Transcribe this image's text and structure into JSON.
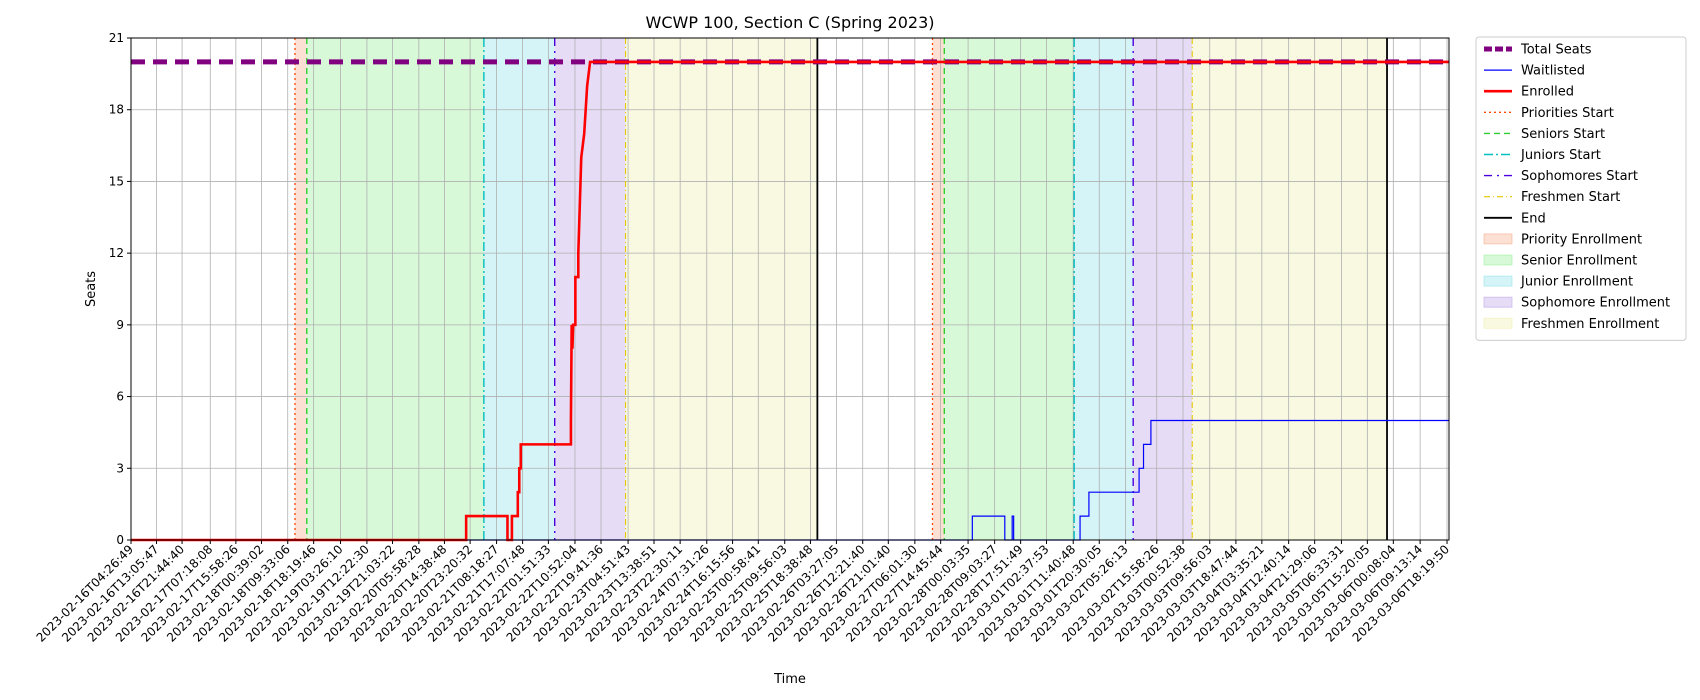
{
  "chart_data": {
    "type": "line",
    "title": "WCWP 100, Section C (Spring 2023)",
    "xlabel": "Time",
    "ylabel": "Seats",
    "ylim": [
      0,
      21
    ],
    "yticks": [
      0,
      3,
      6,
      9,
      12,
      15,
      18,
      21
    ],
    "xlim": [
      "2023-02-16T04:26:49",
      "2023-03-06T19:00:00"
    ],
    "xticks": [
      "2023-02-16T04:26:49",
      "2023-02-16T13:05:47",
      "2023-02-16T21:44:40",
      "2023-02-17T07:18:08",
      "2023-02-17T15:58:26",
      "2023-02-18T00:39:02",
      "2023-02-18T09:33:06",
      "2023-02-18T18:19:46",
      "2023-02-19T03:26:10",
      "2023-02-19T12:22:30",
      "2023-02-19T21:03:22",
      "2023-02-20T05:58:28",
      "2023-02-20T14:38:48",
      "2023-02-20T23:20:32",
      "2023-02-21T08:18:27",
      "2023-02-21T17:07:48",
      "2023-02-22T01:51:33",
      "2023-02-22T10:52:04",
      "2023-02-22T19:41:36",
      "2023-02-23T04:51:43",
      "2023-02-23T13:38:51",
      "2023-02-23T22:30:11",
      "2023-02-24T07:31:26",
      "2023-02-24T16:15:56",
      "2023-02-25T00:58:41",
      "2023-02-25T09:56:03",
      "2023-02-25T18:38:48",
      "2023-02-26T03:27:05",
      "2023-02-26T12:21:40",
      "2023-02-26T21:01:40",
      "2023-02-27T06:01:30",
      "2023-02-27T14:45:44",
      "2023-02-28T00:03:35",
      "2023-02-28T09:03:27",
      "2023-02-28T17:51:49",
      "2023-03-01T02:37:53",
      "2023-03-01T11:40:48",
      "2023-03-01T20:30:05",
      "2023-03-02T05:26:13",
      "2023-03-02T15:58:26",
      "2023-03-03T00:52:38",
      "2023-03-03T09:56:03",
      "2023-03-03T18:47:44",
      "2023-03-04T03:35:21",
      "2023-03-04T12:40:14",
      "2023-03-04T21:29:06",
      "2023-03-05T06:33:31",
      "2023-03-05T15:20:05",
      "2023-03-06T00:08:04",
      "2023-03-06T09:13:14",
      "2023-03-06T18:19:50"
    ],
    "grid": true,
    "legend_position": "outside-right",
    "series": [
      {
        "name": "Total Seats",
        "style": "dashed-thick",
        "color": "#800080",
        "points": [
          [
            "2023-02-16T04:26:49",
            20
          ],
          [
            "2023-03-06T19:00:00",
            20
          ]
        ]
      },
      {
        "name": "Waitlisted",
        "style": "solid-thin",
        "color": "#0000ff",
        "points": [
          [
            "2023-02-16T04:26:49",
            0
          ],
          [
            "2023-02-28T01:30:00",
            0
          ],
          [
            "2023-02-28T01:30:00",
            1
          ],
          [
            "2023-02-28T12:30:00",
            1
          ],
          [
            "2023-02-28T12:30:00",
            0
          ],
          [
            "2023-02-28T15:00:00",
            0
          ],
          [
            "2023-02-28T15:00:00",
            1
          ],
          [
            "2023-02-28T15:30:00",
            1
          ],
          [
            "2023-02-28T15:30:00",
            0
          ],
          [
            "2023-03-01T14:00:00",
            0
          ],
          [
            "2023-03-01T14:00:00",
            1
          ],
          [
            "2023-03-01T17:00:00",
            1
          ],
          [
            "2023-03-01T17:00:00",
            2
          ],
          [
            "2023-03-02T10:00:00",
            2
          ],
          [
            "2023-03-02T10:00:00",
            3
          ],
          [
            "2023-03-02T11:30:00",
            3
          ],
          [
            "2023-03-02T11:30:00",
            4
          ],
          [
            "2023-03-02T14:00:00",
            4
          ],
          [
            "2023-03-02T14:00:00",
            5
          ],
          [
            "2023-03-06T19:00:00",
            5
          ]
        ]
      },
      {
        "name": "Enrolled",
        "style": "solid-thick",
        "color": "#ff0000",
        "points": [
          [
            "2023-02-16T04:26:49",
            0
          ],
          [
            "2023-02-20T22:00:00",
            0
          ],
          [
            "2023-02-20T22:00:00",
            1
          ],
          [
            "2023-02-21T12:00:00",
            1
          ],
          [
            "2023-02-21T12:00:00",
            0
          ],
          [
            "2023-02-21T13:30:00",
            0
          ],
          [
            "2023-02-21T13:30:00",
            1
          ],
          [
            "2023-02-21T15:30:00",
            1
          ],
          [
            "2023-02-21T15:30:00",
            2
          ],
          [
            "2023-02-21T16:00:00",
            2
          ],
          [
            "2023-02-21T16:00:00",
            3
          ],
          [
            "2023-02-21T16:30:00",
            3
          ],
          [
            "2023-02-21T16:30:00",
            4
          ],
          [
            "2023-02-22T09:30:00",
            4
          ],
          [
            "2023-02-22T09:30:00",
            5
          ],
          [
            "2023-02-22T09:45:00",
            9
          ],
          [
            "2023-02-22T10:00:00",
            8
          ],
          [
            "2023-02-22T10:15:00",
            9
          ],
          [
            "2023-02-22T11:00:00",
            9
          ],
          [
            "2023-02-22T11:00:00",
            11
          ],
          [
            "2023-02-22T12:00:00",
            11
          ],
          [
            "2023-02-22T12:00:00",
            12
          ],
          [
            "2023-02-22T13:00:00",
            16
          ],
          [
            "2023-02-22T14:00:00",
            17
          ],
          [
            "2023-02-22T15:00:00",
            19
          ],
          [
            "2023-02-22T16:00:00",
            20
          ],
          [
            "2023-03-06T19:00:00",
            20
          ]
        ]
      }
    ],
    "vertical_lines": [
      {
        "name": "Priorities Start",
        "style": "dotted",
        "color": "#ff4500",
        "x": [
          "2023-02-18T12:00:00",
          "2023-02-27T12:00:00"
        ]
      },
      {
        "name": "Seniors Start",
        "style": "dashed",
        "color": "#32cd32",
        "x": [
          "2023-02-18T16:00:00",
          "2023-02-27T16:00:00"
        ]
      },
      {
        "name": "Juniors Start",
        "style": "dashdot",
        "color": "#00bfbf",
        "x": [
          "2023-02-21T04:00:00",
          "2023-03-01T12:00:00"
        ]
      },
      {
        "name": "Sophomores Start",
        "style": "loosely-dashdot",
        "color": "#4b00e0",
        "x": [
          "2023-02-22T04:00:00",
          "2023-03-02T08:00:00"
        ]
      },
      {
        "name": "Freshmen Start",
        "style": "dashdot-thin",
        "color": "#e6c800",
        "x": [
          "2023-02-23T04:00:00",
          "2023-03-03T04:00:00"
        ]
      },
      {
        "name": "End",
        "style": "solid",
        "color": "#000000",
        "x": [
          "2023-02-25T21:00:00",
          "2023-03-05T22:00:00"
        ]
      }
    ],
    "shaded_regions": [
      {
        "name": "Priority Enrollment",
        "color": "#f4a582",
        "spans": [
          [
            "2023-02-18T12:00:00",
            "2023-02-18T16:00:00"
          ],
          [
            "2023-02-27T12:00:00",
            "2023-02-27T16:00:00"
          ]
        ]
      },
      {
        "name": "Senior Enrollment",
        "color": "#90ee90",
        "spans": [
          [
            "2023-02-18T16:00:00",
            "2023-02-21T04:00:00"
          ],
          [
            "2023-02-27T16:00:00",
            "2023-03-01T12:00:00"
          ]
        ]
      },
      {
        "name": "Junior Enrollment",
        "color": "#87e0e8",
        "spans": [
          [
            "2023-02-21T04:00:00",
            "2023-02-22T04:00:00"
          ],
          [
            "2023-03-01T12:00:00",
            "2023-03-02T08:00:00"
          ]
        ]
      },
      {
        "name": "Sophomore Enrollment",
        "color": "#b69ae6",
        "spans": [
          [
            "2023-02-22T04:00:00",
            "2023-02-23T04:00:00"
          ],
          [
            "2023-03-02T08:00:00",
            "2023-03-03T04:00:00"
          ]
        ]
      },
      {
        "name": "Freshmen Enrollment",
        "color": "#eeeea8",
        "spans": [
          [
            "2023-02-23T04:00:00",
            "2023-02-25T21:00:00"
          ],
          [
            "2023-03-03T04:00:00",
            "2023-03-05T22:00:00"
          ]
        ]
      }
    ],
    "legend": [
      {
        "label": "Total Seats",
        "kind": "line",
        "ref": "series.0"
      },
      {
        "label": "Waitlisted",
        "kind": "line",
        "ref": "series.1"
      },
      {
        "label": "Enrolled",
        "kind": "line",
        "ref": "series.2"
      },
      {
        "label": "Priorities Start",
        "kind": "line",
        "ref": "vertical_lines.0"
      },
      {
        "label": "Seniors Start",
        "kind": "line",
        "ref": "vertical_lines.1"
      },
      {
        "label": "Juniors Start",
        "kind": "line",
        "ref": "vertical_lines.2"
      },
      {
        "label": "Sophomores Start",
        "kind": "line",
        "ref": "vertical_lines.3"
      },
      {
        "label": "Freshmen Start",
        "kind": "line",
        "ref": "vertical_lines.4"
      },
      {
        "label": "End",
        "kind": "line",
        "ref": "vertical_lines.5"
      },
      {
        "label": "Priority Enrollment",
        "kind": "patch",
        "ref": "shaded_regions.0"
      },
      {
        "label": "Senior Enrollment",
        "kind": "patch",
        "ref": "shaded_regions.1"
      },
      {
        "label": "Junior Enrollment",
        "kind": "patch",
        "ref": "shaded_regions.2"
      },
      {
        "label": "Sophomore Enrollment",
        "kind": "patch",
        "ref": "shaded_regions.3"
      },
      {
        "label": "Freshmen Enrollment",
        "kind": "patch",
        "ref": "shaded_regions.4"
      }
    ]
  }
}
